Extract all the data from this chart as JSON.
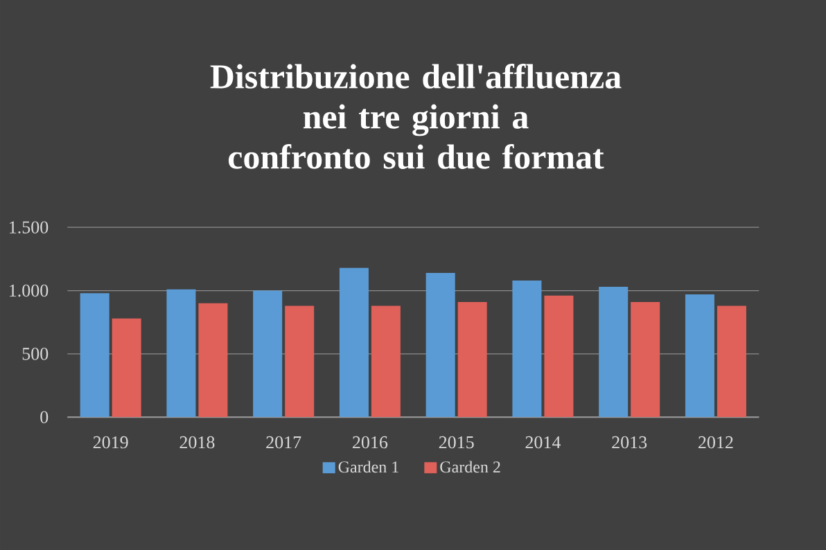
{
  "chart_data": {
    "type": "bar",
    "title": "Distribuzione dell'affluenza nei tre giorni a confronto sui due format",
    "categories": [
      "2019",
      "2018",
      "2017",
      "2016",
      "2015",
      "2014",
      "2013",
      "2012"
    ],
    "series": [
      {
        "name": "Garden 1",
        "color": "#5b9bd5",
        "values": [
          980,
          1010,
          1000,
          1180,
          1140,
          1080,
          1030,
          970
        ]
      },
      {
        "name": "Garden 2",
        "color": "#e0605a",
        "values": [
          780,
          900,
          880,
          880,
          910,
          960,
          910,
          880
        ]
      }
    ],
    "ylim": [
      0,
      1500
    ],
    "yticks": [
      {
        "value": 0,
        "label": "0"
      },
      {
        "value": 500,
        "label": "500"
      },
      {
        "value": 1000,
        "label": "1.000"
      },
      {
        "value": 1500,
        "label": "1.500"
      }
    ],
    "grid": "y",
    "legend": "bottom"
  }
}
